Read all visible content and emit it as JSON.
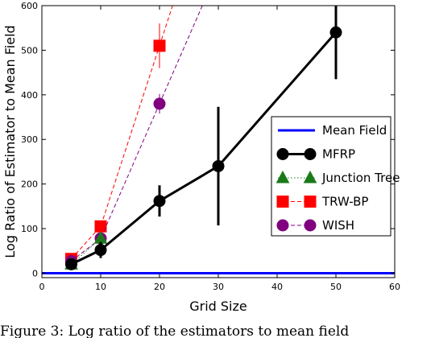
{
  "chart_data": {
    "type": "line",
    "title": "",
    "xlabel": "Grid Size",
    "ylabel": "Log Ratio of Estimator to Mean Field",
    "xlim": [
      0,
      60
    ],
    "ylim": [
      -10,
      600
    ],
    "xticks": [
      0,
      10,
      20,
      30,
      40,
      50,
      60
    ],
    "yticks": [
      0,
      100,
      200,
      300,
      400,
      500,
      600
    ],
    "grid": false,
    "legend_position": "right",
    "series": [
      {
        "name": "Mean Field",
        "color": "#0000ff",
        "style": "solid-thick",
        "marker": "none",
        "x": [
          0,
          60
        ],
        "y": [
          0,
          0
        ],
        "err": [
          0,
          0
        ]
      },
      {
        "name": "MFRP",
        "color": "#000000",
        "style": "solid-thick",
        "marker": "circle",
        "x": [
          5,
          10,
          20,
          30,
          50
        ],
        "y": [
          20,
          52,
          162,
          240,
          540
        ],
        "err": [
          6,
          18,
          35,
          133,
          105
        ]
      },
      {
        "name": "Junction Tree",
        "color": "#1a7a1a",
        "style": "dotted",
        "marker": "triangle",
        "x": [
          5,
          10
        ],
        "y": [
          20,
          78
        ],
        "err": [
          5,
          10
        ]
      },
      {
        "name": "TRW-BP",
        "color": "#ff0000",
        "style": "dashed",
        "marker": "square",
        "x": [
          5,
          10,
          20
        ],
        "y": [
          32,
          105,
          510
        ],
        "err": [
          5,
          12,
          50
        ]
      },
      {
        "name": "WISH",
        "color": "#800080",
        "style": "dashed",
        "marker": "circle",
        "x": [
          5,
          10,
          20
        ],
        "y": [
          27,
          78,
          380
        ],
        "err": [
          5,
          10,
          22
        ]
      }
    ]
  },
  "caption": {
    "text": "Figure 3: Log ratio of the estimators to mean field"
  }
}
